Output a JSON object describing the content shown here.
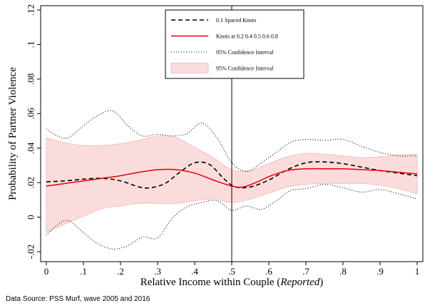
{
  "chart_data": {
    "type": "line",
    "title": "",
    "xlabel": "Relative Income within Couple",
    "xlabel_suffix": "Reported",
    "ylabel": "Probability of Partner Violence",
    "xlim": [
      0,
      1
    ],
    "ylim": [
      -0.02,
      0.12
    ],
    "x_ticks": [
      0,
      0.1,
      0.2,
      0.3,
      0.4,
      0.5,
      0.6,
      0.7,
      0.8,
      0.9,
      1
    ],
    "x_tick_labels": [
      "0",
      ".1",
      ".2",
      ".3",
      ".4",
      ".5",
      ".6",
      ".7",
      ".8",
      ".9",
      "1"
    ],
    "y_ticks": [
      -0.02,
      0,
      0.02,
      0.04,
      0.06,
      0.08,
      0.1,
      0.12
    ],
    "y_tick_labels": [
      "-.02",
      "0",
      ".02",
      ".04",
      ".06",
      ".08",
      ".1",
      ".12"
    ],
    "vline_x": 0.5,
    "grid": false,
    "legend_position": "top-center",
    "series": [
      {
        "name": "0.1 Spaced Knots",
        "style": "dashed",
        "color": "#000000",
        "x": [
          0,
          0.05,
          0.1,
          0.15,
          0.2,
          0.25,
          0.28,
          0.32,
          0.36,
          0.4,
          0.44,
          0.48,
          0.51,
          0.55,
          0.6,
          0.65,
          0.7,
          0.75,
          0.8,
          0.85,
          0.9,
          0.95,
          1
        ],
        "y": [
          0.0205,
          0.021,
          0.022,
          0.0225,
          0.021,
          0.0175,
          0.017,
          0.0195,
          0.026,
          0.0315,
          0.0305,
          0.022,
          0.0175,
          0.0175,
          0.0215,
          0.0275,
          0.0315,
          0.032,
          0.031,
          0.029,
          0.027,
          0.0255,
          0.024
        ]
      },
      {
        "name": "Knots at 0.2 0.4 0.5 0.6 0.8",
        "style": "solid",
        "color": "#e8000b",
        "x": [
          0,
          0.05,
          0.1,
          0.15,
          0.2,
          0.25,
          0.3,
          0.35,
          0.4,
          0.45,
          0.5,
          0.53,
          0.57,
          0.6,
          0.65,
          0.7,
          0.75,
          0.8,
          0.85,
          0.9,
          0.95,
          1
        ],
        "y": [
          0.018,
          0.0195,
          0.021,
          0.0225,
          0.024,
          0.026,
          0.0275,
          0.0275,
          0.0255,
          0.0215,
          0.018,
          0.0175,
          0.0205,
          0.0235,
          0.027,
          0.028,
          0.028,
          0.028,
          0.0275,
          0.027,
          0.026,
          0.025
        ]
      },
      {
        "name": "95% Confidence Interval",
        "style": "dotted",
        "color": "#000000",
        "x": [
          0,
          0.03,
          0.06,
          0.1,
          0.14,
          0.18,
          0.22,
          0.26,
          0.3,
          0.34,
          0.38,
          0.42,
          0.46,
          0.5,
          0.54,
          0.58,
          0.62,
          0.66,
          0.7,
          0.75,
          0.8,
          0.85,
          0.9,
          0.95,
          1
        ],
        "y": [
          0.051,
          0.047,
          0.046,
          0.053,
          0.059,
          0.0615,
          0.053,
          0.047,
          0.048,
          0.047,
          0.0485,
          0.0545,
          0.046,
          0.0315,
          0.0265,
          0.0315,
          0.0375,
          0.0435,
          0.045,
          0.0445,
          0.045,
          0.041,
          0.0375,
          0.0355,
          0.0355
        ]
      },
      {
        "name": "",
        "style": "dotted",
        "color": "#000000",
        "x": [
          0,
          0.03,
          0.06,
          0.1,
          0.14,
          0.18,
          0.22,
          0.26,
          0.3,
          0.34,
          0.38,
          0.42,
          0.46,
          0.5,
          0.54,
          0.58,
          0.62,
          0.66,
          0.7,
          0.75,
          0.8,
          0.85,
          0.9,
          0.95,
          1
        ],
        "y": [
          -0.0105,
          -0.0045,
          -0.002,
          -0.009,
          -0.0155,
          -0.0185,
          -0.0165,
          -0.0115,
          -0.012,
          -0.0005,
          0.006,
          0.0085,
          0.0095,
          0.004,
          0.0065,
          0.0045,
          0.0095,
          0.0155,
          0.0165,
          0.019,
          0.017,
          0.0145,
          0.016,
          0.0135,
          0.0105
        ]
      }
    ],
    "band": {
      "name": "95% Confidence Interval",
      "fill": "#fbdcdc",
      "stroke": "#f4b5b5",
      "x": [
        0,
        0.05,
        0.1,
        0.15,
        0.2,
        0.25,
        0.3,
        0.35,
        0.4,
        0.45,
        0.5,
        0.55,
        0.6,
        0.65,
        0.7,
        0.75,
        0.8,
        0.85,
        0.9,
        0.95,
        1
      ],
      "upper": [
        0.046,
        0.043,
        0.0415,
        0.0415,
        0.0425,
        0.0445,
        0.047,
        0.046,
        0.0405,
        0.0345,
        0.0275,
        0.027,
        0.031,
        0.035,
        0.037,
        0.0365,
        0.0355,
        0.0345,
        0.035,
        0.036,
        0.0365
      ],
      "lower": [
        -0.009,
        -0.004,
        0.0005,
        0.005,
        0.0065,
        0.008,
        0.008,
        0.008,
        0.0095,
        0.0105,
        0.0085,
        0.0105,
        0.014,
        0.0175,
        0.019,
        0.0195,
        0.0195,
        0.0195,
        0.0185,
        0.0165,
        0.0135
      ]
    },
    "legend": [
      {
        "label": "0.1 Spaced Knots",
        "kind": "dashed"
      },
      {
        "label": "Knots at 0.2 0.4 0.5 0.6 0.8",
        "kind": "solid-red"
      },
      {
        "label": "95% Confidence Interval",
        "kind": "dotted"
      },
      {
        "label": "95% Confidence Interval",
        "kind": "band"
      }
    ]
  },
  "footer": {
    "source": "Data Source: PSS Murf, wave 2005 and 2016"
  }
}
